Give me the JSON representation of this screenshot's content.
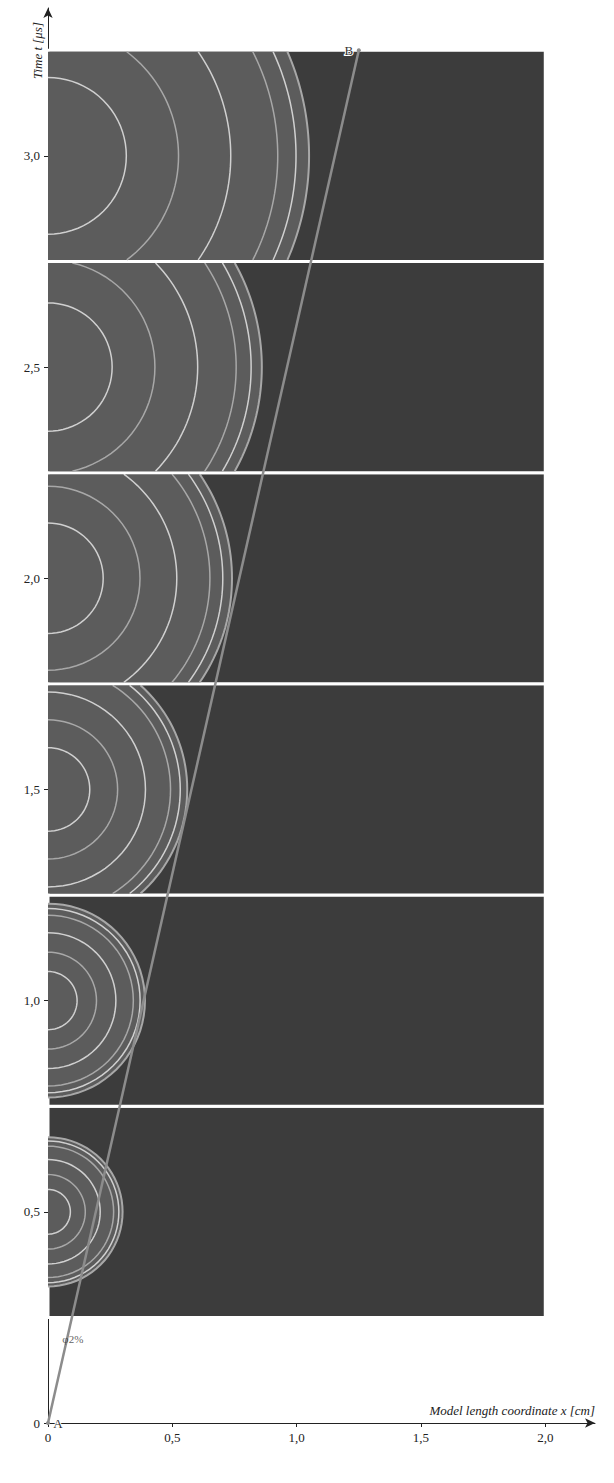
{
  "chart_data": {
    "type": "line",
    "x_label": "Model length coordinate x [cm]",
    "y_label": "Time t [μs]",
    "xlim": [
      0,
      2.2
    ],
    "xticks": [
      0,
      {
        "value": 0.5,
        "label": "0,5"
      },
      {
        "value": 1,
        "label": "1,0"
      },
      {
        "value": 1.5,
        "label": "1,5"
      },
      {
        "value": 2,
        "label": "2,0"
      }
    ],
    "ylim": [
      0,
      3.35
    ],
    "yticks": [
      0,
      {
        "value": 0.5,
        "label": "0,5"
      },
      {
        "value": 1,
        "label": "1,0"
      },
      {
        "value": 1.5,
        "label": "1,5"
      },
      {
        "value": 2,
        "label": "2,0"
      },
      {
        "value": 2.5,
        "label": "2,5"
      },
      {
        "value": 3,
        "label": "3,0"
      }
    ],
    "grid": false,
    "series": [
      {
        "x": [
          0,
          1.25
        ],
        "values": [
          0,
          3.25
        ],
        "point_labels": [
          "A",
          "B"
        ],
        "color": "#8c8c8c"
      }
    ],
    "snapshots": {
      "x_range": [
        0,
        2
      ],
      "color": "#3c3c3c",
      "front_color": "#5c5c5c",
      "t_start": [
        0.25,
        0.75,
        1.25,
        1.75,
        2.25,
        2.75
      ],
      "t_end": [
        0.75,
        1.25,
        1.75,
        2.25,
        2.75,
        3.25
      ],
      "front": [
        0.3,
        0.39,
        0.56,
        0.74,
        0.86,
        1.05
      ]
    },
    "annotation": {
      "text": "φ2%",
      "x": 0.1,
      "y": 0.2
    }
  }
}
